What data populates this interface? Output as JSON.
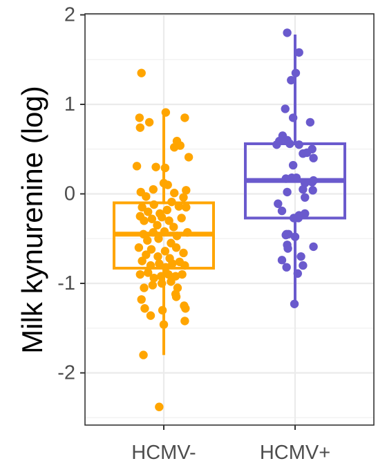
{
  "chart_data": {
    "type": "box",
    "xlabel": "",
    "ylabel": "Milk kynurenine (log)",
    "ylim": [
      -2.55,
      2.05
    ],
    "yticks": [
      2,
      1,
      0,
      -1,
      -2
    ],
    "ytick_labels": [
      "2",
      "1",
      "0",
      "-1",
      "-2"
    ],
    "categories": [
      "HCMV-",
      "HCMV+"
    ],
    "grid": true,
    "legend": "none",
    "groups": [
      {
        "category": "HCMV-",
        "color": "#FFA500",
        "box": {
          "min": -1.8,
          "q1": -0.83,
          "median": -0.45,
          "q3": -0.1,
          "max": 0.91
        },
        "points": [
          [
            -0.34,
            1.35
          ],
          [
            -0.37,
            0.85
          ],
          [
            -0.36,
            0.74
          ],
          [
            -0.22,
            0.8
          ],
          [
            0.03,
            0.91
          ],
          [
            0.32,
            0.85
          ],
          [
            -0.41,
            0.31
          ],
          [
            -0.12,
            0.3
          ],
          [
            0.02,
            0.29
          ],
          [
            0.16,
            0.52
          ],
          [
            0.2,
            0.59
          ],
          [
            0.25,
            0.54
          ],
          [
            0.38,
            0.41
          ],
          [
            -0.35,
            0.02
          ],
          [
            -0.27,
            -0.03
          ],
          [
            -0.16,
            0.05
          ],
          [
            0.0,
            0.12
          ],
          [
            0.06,
            0.1
          ],
          [
            0.16,
            0.01
          ],
          [
            0.3,
            -0.04
          ],
          [
            0.34,
            0.04
          ],
          [
            -0.33,
            -0.15
          ],
          [
            -0.24,
            -0.2
          ],
          [
            -0.15,
            -0.12
          ],
          [
            -0.06,
            -0.22
          ],
          [
            0.05,
            -0.18
          ],
          [
            0.12,
            -0.09
          ],
          [
            0.23,
            -0.14
          ],
          [
            0.34,
            -0.15
          ],
          [
            -0.36,
            -0.25
          ],
          [
            -0.3,
            -0.3
          ],
          [
            -0.18,
            -0.28
          ],
          [
            -0.1,
            -0.35
          ],
          [
            -0.03,
            -0.26
          ],
          [
            0.08,
            -0.3
          ],
          [
            0.15,
            -0.37
          ],
          [
            0.27,
            -0.27
          ],
          [
            -0.31,
            -0.45
          ],
          [
            -0.25,
            -0.52
          ],
          [
            -0.16,
            -0.43
          ],
          [
            -0.08,
            -0.5
          ],
          [
            0.01,
            -0.42
          ],
          [
            0.11,
            -0.55
          ],
          [
            0.2,
            -0.47
          ],
          [
            0.36,
            -0.43
          ],
          [
            -0.38,
            -0.6
          ],
          [
            -0.27,
            -0.68
          ],
          [
            -0.19,
            -0.62
          ],
          [
            -0.09,
            -0.7
          ],
          [
            0.02,
            -0.64
          ],
          [
            0.09,
            -0.72
          ],
          [
            0.19,
            -0.6
          ],
          [
            0.3,
            -0.66
          ],
          [
            -0.33,
            -0.75
          ],
          [
            -0.2,
            -0.8
          ],
          [
            -0.07,
            -0.78
          ],
          [
            0.03,
            -0.82
          ],
          [
            0.13,
            -0.78
          ],
          [
            0.24,
            -0.76
          ],
          [
            0.32,
            -0.8
          ],
          [
            -0.36,
            -0.9
          ],
          [
            -0.24,
            -0.88
          ],
          [
            -0.15,
            -0.94
          ],
          [
            -0.04,
            -0.92
          ],
          [
            0.07,
            -0.9
          ],
          [
            0.18,
            -0.92
          ],
          [
            0.28,
            -0.9
          ],
          [
            -0.3,
            -1.05
          ],
          [
            -0.17,
            -1.02
          ],
          [
            -0.03,
            -1.0
          ],
          [
            0.11,
            -0.98
          ],
          [
            0.21,
            -1.05
          ],
          [
            -0.34,
            -1.18
          ],
          [
            0.18,
            -1.12
          ],
          [
            0.19,
            -1.15
          ],
          [
            0.31,
            -1.25
          ],
          [
            0.33,
            -1.28
          ],
          [
            -0.29,
            -1.28
          ],
          [
            -0.2,
            -1.36
          ],
          [
            -0.02,
            -1.3
          ],
          [
            0.0,
            -1.46
          ],
          [
            0.32,
            -1.42
          ],
          [
            -0.31,
            -1.8
          ],
          [
            -0.07,
            -2.38
          ]
        ]
      },
      {
        "category": "HCMV+",
        "color": "#6A5ACD",
        "box": {
          "min": -1.23,
          "q1": -0.27,
          "median": 0.15,
          "q3": 0.56,
          "max": 1.78
        },
        "points": [
          [
            -0.12,
            1.8
          ],
          [
            0.06,
            1.58
          ],
          [
            0.01,
            1.35
          ],
          [
            -0.06,
            1.27
          ],
          [
            -0.15,
            0.95
          ],
          [
            -0.03,
            0.85
          ],
          [
            0.23,
            0.8
          ],
          [
            -0.28,
            0.55
          ],
          [
            -0.24,
            0.59
          ],
          [
            -0.19,
            0.65
          ],
          [
            -0.12,
            0.6
          ],
          [
            -0.08,
            0.56
          ],
          [
            0.06,
            0.55
          ],
          [
            0.12,
            0.45
          ],
          [
            0.18,
            0.46
          ],
          [
            0.26,
            0.5
          ],
          [
            0.28,
            0.4
          ],
          [
            -0.03,
            0.32
          ],
          [
            -0.14,
            0.17
          ],
          [
            -0.05,
            0.18
          ],
          [
            0.02,
            0.18
          ],
          [
            0.15,
            0.12
          ],
          [
            0.26,
            0.13
          ],
          [
            0.28,
            0.15
          ],
          [
            -0.12,
            0.02
          ],
          [
            0.12,
            0.05
          ],
          [
            0.15,
            -0.04
          ],
          [
            0.27,
            0.04
          ],
          [
            -0.26,
            -0.11
          ],
          [
            -0.2,
            -0.19
          ],
          [
            0.06,
            -0.24
          ],
          [
            0.15,
            -0.22
          ],
          [
            -0.02,
            -0.27
          ],
          [
            0.05,
            -0.27
          ],
          [
            -0.1,
            -0.45
          ],
          [
            -0.13,
            -0.45
          ],
          [
            -0.14,
            -0.46
          ],
          [
            0.0,
            -0.48
          ],
          [
            -0.12,
            -0.57
          ],
          [
            -0.11,
            -0.61
          ],
          [
            0.28,
            -0.59
          ],
          [
            0.09,
            -0.7
          ],
          [
            -0.2,
            -0.74
          ],
          [
            -0.13,
            -0.82
          ],
          [
            0.12,
            -0.8
          ],
          [
            0.04,
            -0.89
          ],
          [
            -0.01,
            -1.23
          ]
        ]
      }
    ]
  }
}
